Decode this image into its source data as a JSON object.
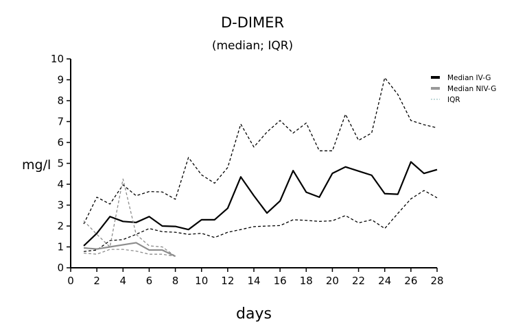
{
  "chart_data": {
    "type": "line",
    "title": "D-DIMER",
    "subtitle": "(median; IQR)",
    "xlabel": "days",
    "ylabel": "mg/l",
    "xlim": [
      0,
      28
    ],
    "ylim": [
      0,
      10
    ],
    "xticks": [
      0,
      2,
      4,
      6,
      8,
      10,
      12,
      14,
      16,
      18,
      20,
      22,
      24,
      26,
      28
    ],
    "yticks": [
      0,
      1,
      2,
      3,
      4,
      5,
      6,
      7,
      8,
      9,
      10
    ],
    "grid": false,
    "legend_position": "top-right",
    "legend": [
      {
        "label": "Median IV-G",
        "color": "#000000",
        "style": "solid"
      },
      {
        "label": "Median NIV-G",
        "color": "#999999",
        "style": "solid"
      },
      {
        "label": "IQR",
        "color": "#7fb0b0",
        "style": "dashed"
      }
    ],
    "series": [
      {
        "name": "Median IV-G",
        "color": "#000000",
        "dash": false,
        "width": 2.2,
        "x": [
          1,
          2,
          3,
          4,
          5,
          6,
          7,
          8,
          9,
          10,
          11,
          12,
          13,
          14,
          15,
          16,
          17,
          18,
          19,
          20,
          21,
          22,
          23,
          24,
          25,
          26,
          27,
          28
        ],
        "values": [
          1.05,
          1.65,
          2.45,
          2.22,
          2.17,
          2.45,
          2.0,
          1.98,
          1.83,
          2.3,
          2.3,
          2.85,
          4.35,
          3.45,
          2.62,
          3.2,
          4.65,
          3.62,
          3.38,
          4.52,
          4.83,
          4.63,
          4.43,
          3.55,
          3.52,
          5.07,
          4.52,
          4.7
        ]
      },
      {
        "name": "IV-G IQR upper",
        "color": "#000000",
        "dash": true,
        "width": 1.3,
        "x": [
          1,
          2,
          3,
          4,
          5,
          6,
          7,
          8,
          9,
          10,
          11,
          12,
          13,
          14,
          15,
          16,
          17,
          18,
          19,
          20,
          21,
          22,
          23,
          24,
          25,
          26,
          27,
          28
        ],
        "values": [
          2.1,
          3.38,
          3.05,
          3.97,
          3.45,
          3.65,
          3.63,
          3.28,
          5.28,
          4.45,
          4.05,
          4.8,
          6.88,
          5.78,
          6.5,
          7.05,
          6.45,
          6.93,
          5.6,
          5.6,
          7.35,
          6.1,
          6.45,
          9.1,
          8.3,
          7.05,
          6.85,
          6.7
        ]
      },
      {
        "name": "IV-G IQR lower",
        "color": "#000000",
        "dash": true,
        "width": 1.3,
        "x": [
          1,
          2,
          3,
          4,
          5,
          6,
          7,
          8,
          9,
          10,
          11,
          12,
          13,
          14,
          15,
          16,
          17,
          18,
          19,
          20,
          21,
          22,
          23,
          24,
          25,
          26,
          27,
          28
        ],
        "values": [
          0.78,
          0.85,
          1.3,
          1.35,
          1.6,
          1.88,
          1.73,
          1.7,
          1.6,
          1.65,
          1.45,
          1.7,
          1.83,
          1.97,
          2.0,
          2.02,
          2.3,
          2.27,
          2.22,
          2.25,
          2.5,
          2.15,
          2.3,
          1.88,
          2.6,
          3.3,
          3.7,
          3.35
        ]
      },
      {
        "name": "Median NIV-G",
        "color": "#8c8c8c",
        "dash": false,
        "width": 2.2,
        "x": [
          1,
          2,
          3,
          4,
          5,
          6,
          7,
          8
        ],
        "values": [
          0.95,
          0.9,
          1.0,
          1.1,
          1.2,
          0.85,
          0.85,
          0.55
        ]
      },
      {
        "name": "NIV-G IQR upper",
        "color": "#8c8c8c",
        "dash": true,
        "width": 1.3,
        "x": [
          1,
          2,
          3,
          4,
          5,
          6,
          7,
          8
        ],
        "values": [
          2.25,
          1.6,
          1.0,
          4.25,
          1.6,
          1.05,
          1.0,
          0.55
        ]
      },
      {
        "name": "NIV-G IQR lower",
        "color": "#8c8c8c",
        "dash": true,
        "width": 1.3,
        "x": [
          1,
          2,
          3,
          4,
          5,
          6,
          7,
          8
        ],
        "values": [
          0.7,
          0.65,
          0.88,
          0.88,
          0.8,
          0.65,
          0.65,
          0.55
        ]
      }
    ]
  }
}
